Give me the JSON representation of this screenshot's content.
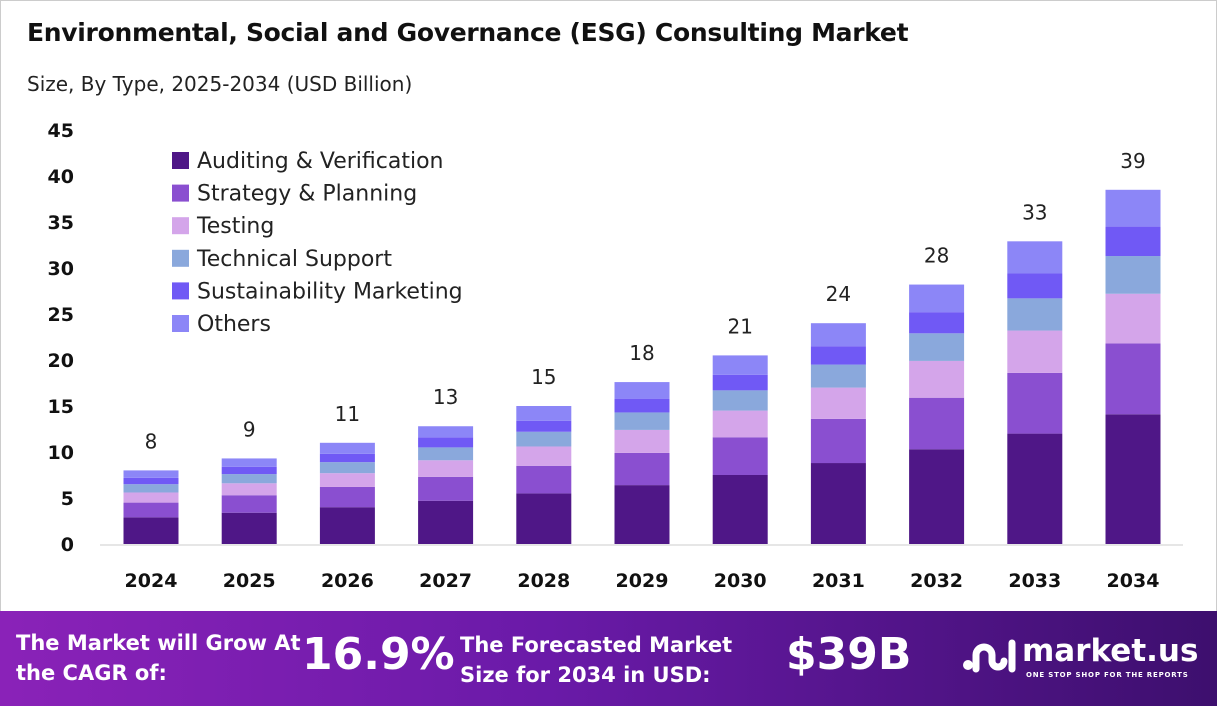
{
  "header": {
    "title": "Environmental, Social and Governance (ESG) Consulting Market",
    "subtitle": "Size, By Type, 2025-2034 (USD Billion)"
  },
  "chart_data": {
    "type": "bar",
    "stacked": true,
    "categories": [
      "2024",
      "2025",
      "2026",
      "2027",
      "2028",
      "2029",
      "2030",
      "2031",
      "2032",
      "2033",
      "2034"
    ],
    "ylim": [
      0,
      45
    ],
    "yticks": [
      0,
      5,
      10,
      15,
      20,
      25,
      30,
      35,
      40,
      45
    ],
    "grid": false,
    "legend_position": "top-left",
    "totals_labels": [
      "8",
      "9",
      "11",
      "13",
      "15",
      "18",
      "21",
      "24",
      "28",
      "33",
      "39"
    ],
    "series": [
      {
        "name": "Auditing & Verification",
        "color": "#4f1787",
        "values": [
          2.9,
          3.4,
          4.0,
          4.7,
          5.5,
          6.4,
          7.5,
          8.8,
          10.3,
          12.0,
          14.1
        ]
      },
      {
        "name": "Strategy & Planning",
        "color": "#8a4fd0",
        "values": [
          1.6,
          1.9,
          2.2,
          2.6,
          3.0,
          3.5,
          4.1,
          4.8,
          5.6,
          6.6,
          7.7
        ]
      },
      {
        "name": "Testing",
        "color": "#d4a5ea",
        "values": [
          1.1,
          1.3,
          1.5,
          1.8,
          2.1,
          2.5,
          2.9,
          3.4,
          4.0,
          4.6,
          5.4
        ]
      },
      {
        "name": "Technical Support",
        "color": "#8aa8dc",
        "values": [
          0.9,
          1.0,
          1.2,
          1.4,
          1.6,
          1.9,
          2.2,
          2.5,
          3.0,
          3.5,
          4.1
        ]
      },
      {
        "name": "Sustainability Marketing",
        "color": "#7059f5",
        "values": [
          0.7,
          0.8,
          0.9,
          1.1,
          1.2,
          1.5,
          1.7,
          2.0,
          2.3,
          2.7,
          3.2
        ]
      },
      {
        "name": "Others",
        "color": "#8c86f7",
        "values": [
          0.8,
          0.9,
          1.2,
          1.2,
          1.6,
          1.8,
          2.1,
          2.5,
          3.0,
          3.5,
          4.0
        ]
      }
    ]
  },
  "footer": {
    "cagr_label": "The Market will Grow At the CAGR of:",
    "cagr_value": "16.9%",
    "forecast_label": "The Forecasted Market Size for 2034 in USD:",
    "forecast_value": "$39B",
    "logo_name": "market.us",
    "logo_tagline": "ONE STOP SHOP FOR THE REPORTS"
  }
}
